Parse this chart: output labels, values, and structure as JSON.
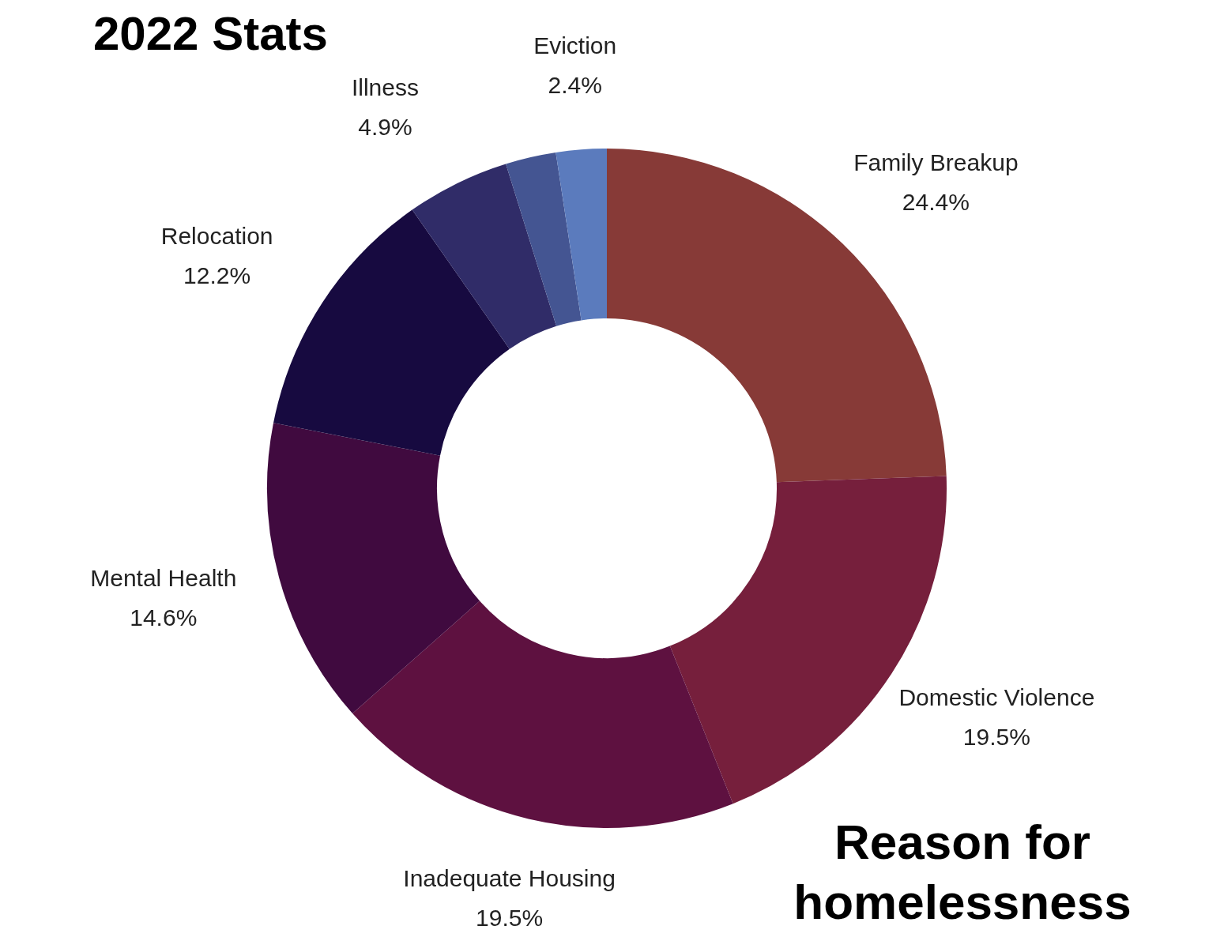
{
  "chart_data": {
    "type": "donut",
    "title": "2022 Stats",
    "subtitle": "Reason for homelessness",
    "categories": [
      "Family Breakup",
      "Domestic Violence",
      "Inadequate Housing",
      "Mental Health",
      "Relocation",
      "Illness",
      null,
      "Eviction"
    ],
    "values": [
      24.4,
      19.5,
      19.5,
      14.6,
      12.2,
      4.9,
      2.4,
      2.4
    ],
    "value_labels": [
      "24.4%",
      "19.5%",
      "19.5%",
      "14.6%",
      "12.2%",
      "4.9%",
      null,
      "2.4%"
    ],
    "colors": [
      "#873a37",
      "#761f3c",
      "#5e1140",
      "#400a3f",
      "#170a40",
      "#302c68",
      "#445592",
      "#5b7bbd"
    ]
  }
}
